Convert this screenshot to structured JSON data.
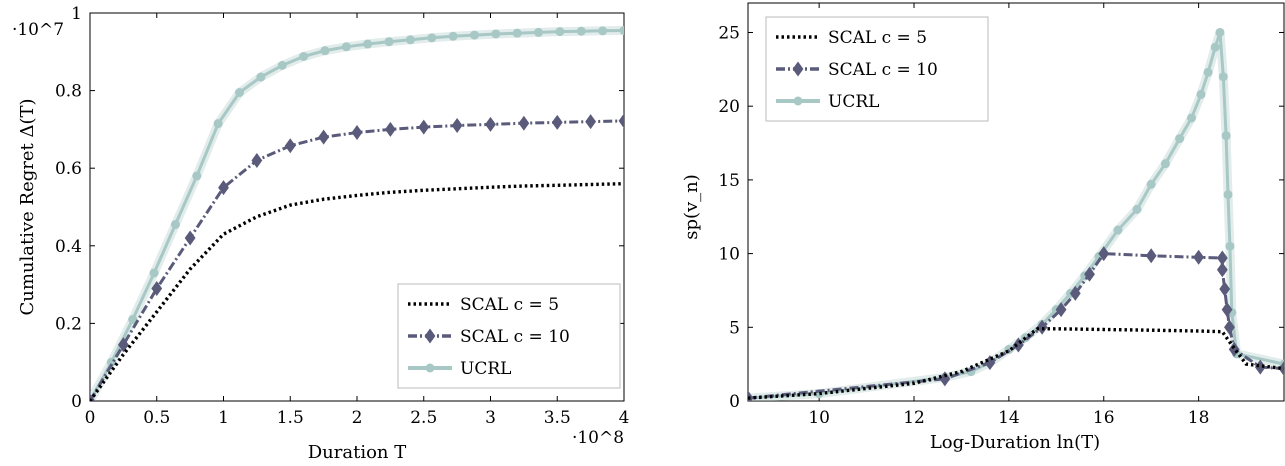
{
  "chart_data": [
    {
      "type": "line",
      "xlabel": "Duration T",
      "ylabel": "Cumulative Regret Δ(T)",
      "xlim": [
        0,
        4
      ],
      "ylim": [
        0,
        1
      ],
      "x_scale_label": "·10^8",
      "y_scale_label": "·10^7",
      "x_ticks": [
        "0",
        "0.5",
        "1",
        "1.5",
        "2",
        "2.5",
        "3",
        "3.5",
        "4"
      ],
      "y_ticks": [
        "0",
        "0.2",
        "0.4",
        "0.6",
        "0.8",
        "1"
      ],
      "legend_position": "bottom-right",
      "series": [
        {
          "name": "SCAL c = 5",
          "color": "#000000",
          "style": "dotted",
          "marker": "none",
          "x": [
            0,
            0.25,
            0.5,
            0.75,
            1,
            1.25,
            1.5,
            1.75,
            2,
            2.25,
            2.5,
            2.75,
            3,
            3.25,
            3.5,
            3.75,
            4
          ],
          "y": [
            0,
            0.12,
            0.23,
            0.34,
            0.43,
            0.475,
            0.505,
            0.52,
            0.53,
            0.538,
            0.543,
            0.547,
            0.551,
            0.554,
            0.556,
            0.558,
            0.56
          ]
        },
        {
          "name": "SCAL c = 10",
          "color": "#5a5a7a",
          "style": "dashdot",
          "marker": "diamond",
          "x": [
            0,
            0.25,
            0.5,
            0.75,
            1,
            1.25,
            1.5,
            1.75,
            2,
            2.25,
            2.5,
            2.75,
            3,
            3.25,
            3.5,
            3.75,
            4
          ],
          "y": [
            0,
            0.145,
            0.29,
            0.42,
            0.55,
            0.62,
            0.658,
            0.68,
            0.692,
            0.7,
            0.706,
            0.71,
            0.713,
            0.716,
            0.718,
            0.72,
            0.722
          ]
        },
        {
          "name": "UCRL",
          "color": "#a8c8c6",
          "style": "solid",
          "marker": "circle",
          "x": [
            0,
            0.16,
            0.32,
            0.48,
            0.64,
            0.8,
            0.96,
            1.12,
            1.28,
            1.44,
            1.6,
            1.76,
            1.92,
            2.08,
            2.24,
            2.4,
            2.56,
            2.72,
            2.88,
            3.04,
            3.2,
            3.36,
            3.52,
            3.68,
            3.84,
            4.0
          ],
          "y": [
            0,
            0.1,
            0.21,
            0.33,
            0.455,
            0.58,
            0.715,
            0.795,
            0.835,
            0.865,
            0.888,
            0.903,
            0.913,
            0.92,
            0.926,
            0.931,
            0.936,
            0.94,
            0.943,
            0.946,
            0.948,
            0.95,
            0.952,
            0.953,
            0.954,
            0.955
          ]
        }
      ]
    },
    {
      "type": "line",
      "xlabel": "Log-Duration ln(T)",
      "ylabel": "sp(v_n)",
      "xlim": [
        8.5,
        19.8
      ],
      "ylim": [
        0,
        27
      ],
      "x_ticks": [
        "10",
        "12",
        "14",
        "16",
        "18"
      ],
      "y_ticks": [
        "0",
        "5",
        "10",
        "15",
        "20",
        "25"
      ],
      "legend_position": "top-left",
      "series": [
        {
          "name": "SCAL c = 5",
          "color": "#000000",
          "style": "dotted",
          "marker": "none",
          "x": [
            8.5,
            10,
            12,
            13,
            14,
            14.6,
            15,
            16,
            17,
            18,
            18.5,
            18.7,
            19,
            19.8
          ],
          "y": [
            0.2,
            0.5,
            1.2,
            2.0,
            3.4,
            4.9,
            4.9,
            4.85,
            4.8,
            4.75,
            4.7,
            3.8,
            2.5,
            2.2
          ]
        },
        {
          "name": "SCAL c = 10",
          "color": "#5a5a7a",
          "style": "dashdot",
          "marker": "diamond",
          "x": [
            8.5,
            12.65,
            13.6,
            14.2,
            14.7,
            15.1,
            15.4,
            15.7,
            16.0,
            17.0,
            18.0,
            18.5,
            18.5,
            18.55,
            18.6,
            18.65,
            18.75,
            19.3,
            19.8
          ],
          "y": [
            0.2,
            1.5,
            2.6,
            3.8,
            5.0,
            6.2,
            7.3,
            8.6,
            10.0,
            9.85,
            9.75,
            9.7,
            8.9,
            7.6,
            6.2,
            5.0,
            3.5,
            2.3,
            2.2
          ]
        },
        {
          "name": "UCRL",
          "color": "#a8c8c6",
          "style": "solid",
          "marker": "circle",
          "x": [
            8.5,
            10,
            12.65,
            13.2,
            13.6,
            14.0,
            14.35,
            14.7,
            15.0,
            15.3,
            15.6,
            15.9,
            16.3,
            16.7,
            17.0,
            17.3,
            17.6,
            17.85,
            18.05,
            18.2,
            18.35,
            18.45,
            18.52,
            18.58,
            18.62,
            18.66,
            18.7,
            18.8,
            19.8
          ],
          "y": [
            0.2,
            0.5,
            1.6,
            2.0,
            2.6,
            3.5,
            4.3,
            5.2,
            6.2,
            7.3,
            8.5,
            9.8,
            11.6,
            13.0,
            14.7,
            16.1,
            17.8,
            19.2,
            20.8,
            22.3,
            24.0,
            25.0,
            22.0,
            18.0,
            14.0,
            10.5,
            6.0,
            3.2,
            2.5
          ]
        }
      ]
    }
  ]
}
